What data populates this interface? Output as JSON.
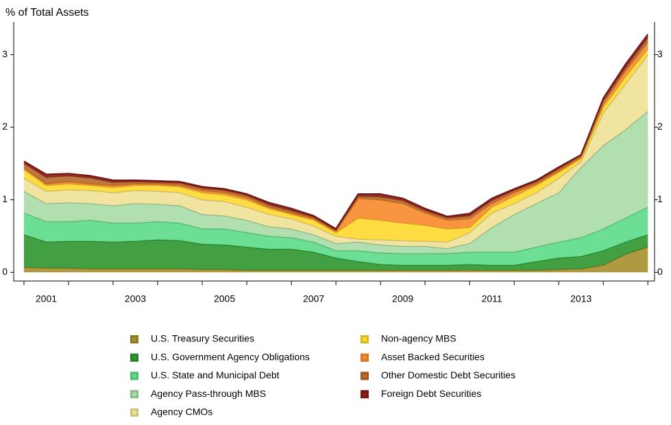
{
  "chart_data": {
    "type": "stacked_area",
    "y_label": "% of Total Assets",
    "x": [
      2001.0,
      2001.5,
      2002.0,
      2002.5,
      2003.0,
      2003.5,
      2004.0,
      2004.5,
      2005.0,
      2005.5,
      2006.0,
      2006.5,
      2007.0,
      2007.5,
      2008.0,
      2008.5,
      2009.0,
      2009.5,
      2010.0,
      2010.5,
      2011.0,
      2011.5,
      2012.0,
      2012.5,
      2013.0,
      2013.5,
      2014.0,
      2014.5,
      2015.0
    ],
    "xlim": [
      2000.77,
      2015.15
    ],
    "xticks": [
      2001,
      2002,
      2003,
      2004,
      2005,
      2006,
      2007,
      2008,
      2009,
      2010,
      2011,
      2012,
      2013,
      2014,
      2015
    ],
    "xtick_labels": [
      2001,
      2003,
      2005,
      2007,
      2009,
      2011,
      2013
    ],
    "ylim": [
      -0.12,
      3.45
    ],
    "yticks": [
      0,
      1,
      2,
      3
    ],
    "legend": "bottom",
    "series": [
      {
        "name": "U.S. Treasury Securities",
        "color": "#a68f2e",
        "values": [
          0.07,
          0.06,
          0.06,
          0.05,
          0.05,
          0.05,
          0.05,
          0.05,
          0.04,
          0.04,
          0.03,
          0.03,
          0.03,
          0.03,
          0.03,
          0.03,
          0.03,
          0.03,
          0.03,
          0.03,
          0.03,
          0.03,
          0.03,
          0.03,
          0.04,
          0.05,
          0.1,
          0.25,
          0.35
        ]
      },
      {
        "name": "U.S. Government Agency Obligations",
        "color": "#2e962e",
        "values": [
          0.45,
          0.36,
          0.37,
          0.38,
          0.37,
          0.38,
          0.4,
          0.39,
          0.35,
          0.34,
          0.32,
          0.29,
          0.29,
          0.25,
          0.17,
          0.12,
          0.08,
          0.07,
          0.07,
          0.07,
          0.08,
          0.07,
          0.07,
          0.12,
          0.16,
          0.17,
          0.2,
          0.17,
          0.17
        ]
      },
      {
        "name": "U.S. State and Municipal Debt",
        "color": "#5ddc88",
        "values": [
          0.3,
          0.28,
          0.27,
          0.29,
          0.26,
          0.25,
          0.25,
          0.24,
          0.21,
          0.22,
          0.2,
          0.18,
          0.16,
          0.14,
          0.1,
          0.15,
          0.16,
          0.16,
          0.16,
          0.16,
          0.17,
          0.18,
          0.18,
          0.2,
          0.22,
          0.26,
          0.3,
          0.33,
          0.38
        ]
      },
      {
        "name": "Agency Pass-through MBS",
        "color": "#a8dca6",
        "values": [
          0.3,
          0.25,
          0.26,
          0.23,
          0.24,
          0.27,
          0.24,
          0.24,
          0.2,
          0.18,
          0.17,
          0.13,
          0.12,
          0.1,
          0.1,
          0.12,
          0.11,
          0.1,
          0.1,
          0.07,
          0.12,
          0.34,
          0.52,
          0.6,
          0.68,
          0.97,
          1.15,
          1.22,
          1.32
        ]
      },
      {
        "name": "Agency CMOs",
        "color": "#f0e196",
        "values": [
          0.18,
          0.17,
          0.18,
          0.18,
          0.18,
          0.18,
          0.18,
          0.18,
          0.2,
          0.2,
          0.18,
          0.17,
          0.14,
          0.12,
          0.1,
          0.04,
          0.07,
          0.08,
          0.07,
          0.09,
          0.15,
          0.2,
          0.15,
          0.15,
          0.2,
          0.08,
          0.45,
          0.63,
          0.78
        ]
      },
      {
        "name": "Non-agency MBS",
        "color": "#ffd92e",
        "values": [
          0.12,
          0.08,
          0.08,
          0.07,
          0.07,
          0.07,
          0.08,
          0.08,
          0.1,
          0.09,
          0.1,
          0.08,
          0.06,
          0.08,
          0.05,
          0.29,
          0.27,
          0.24,
          0.22,
          0.18,
          0.07,
          0.08,
          0.1,
          0.1,
          0.08,
          0.04,
          0.08,
          0.1,
          0.08
        ]
      },
      {
        "name": "Asset Backed Securities",
        "color": "#f88a2c",
        "values": [
          0.02,
          0.02,
          0.03,
          0.02,
          0.03,
          0.02,
          0.02,
          0.02,
          0.03,
          0.03,
          0.03,
          0.02,
          0.02,
          0.02,
          0.02,
          0.27,
          0.28,
          0.27,
          0.17,
          0.12,
          0.12,
          0.05,
          0.05,
          0.02,
          0.02,
          0.02,
          0.05,
          0.08,
          0.09
        ]
      },
      {
        "name": "Other Domestic Debt Securities",
        "color": "#b8692c",
        "values": [
          0.06,
          0.09,
          0.08,
          0.08,
          0.04,
          0.03,
          0.02,
          0.03,
          0.03,
          0.03,
          0.03,
          0.03,
          0.03,
          0.02,
          0.01,
          0.03,
          0.04,
          0.04,
          0.03,
          0.03,
          0.04,
          0.04,
          0.03,
          0.03,
          0.03,
          0.02,
          0.04,
          0.04,
          0.06
        ]
      },
      {
        "name": "Foreign Debt Securities",
        "color": "#8c1a1a",
        "values": [
          0.03,
          0.04,
          0.03,
          0.03,
          0.03,
          0.02,
          0.02,
          0.02,
          0.02,
          0.02,
          0.02,
          0.03,
          0.03,
          0.02,
          0.02,
          0.03,
          0.04,
          0.03,
          0.03,
          0.02,
          0.03,
          0.03,
          0.02,
          0.02,
          0.02,
          0.01,
          0.03,
          0.05,
          0.05
        ]
      }
    ]
  }
}
